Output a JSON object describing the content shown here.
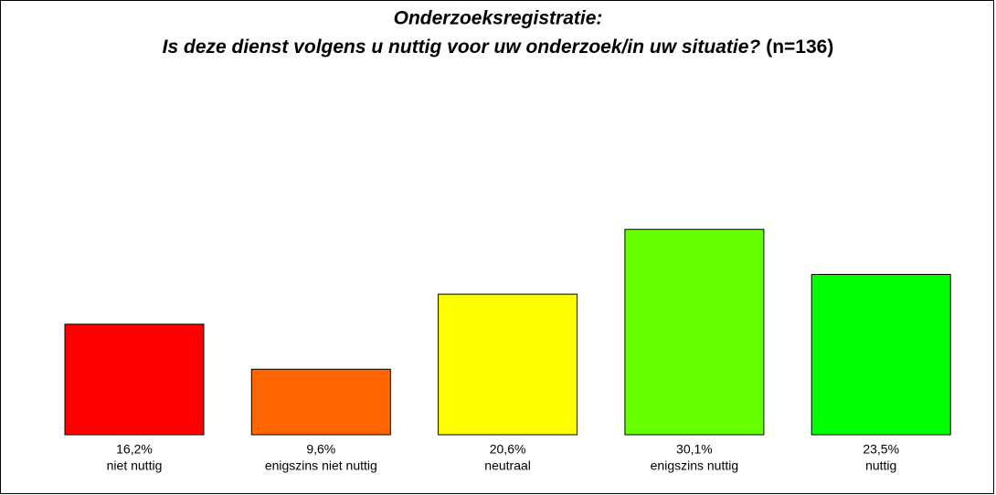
{
  "chart_data": {
    "type": "bar",
    "title": "Onderzoeksregistratie:",
    "subtitle": "Is deze dienst volgens u nuttig voor uw onderzoek/in uw situatie?",
    "subtitle_note": "(n=136)",
    "categories": [
      "niet nuttig",
      "enigszins niet nuttig",
      "neutraal",
      "enigszins nuttig",
      "nuttig"
    ],
    "values": [
      16.2,
      9.6,
      20.6,
      30.1,
      23.5
    ],
    "value_labels": [
      "16,2%",
      "9,6%",
      "20,6%",
      "30,1%",
      "23,5%"
    ],
    "colors": [
      "#ff0000",
      "#ff6600",
      "#ffff00",
      "#66ff00",
      "#00ff00"
    ]
  }
}
